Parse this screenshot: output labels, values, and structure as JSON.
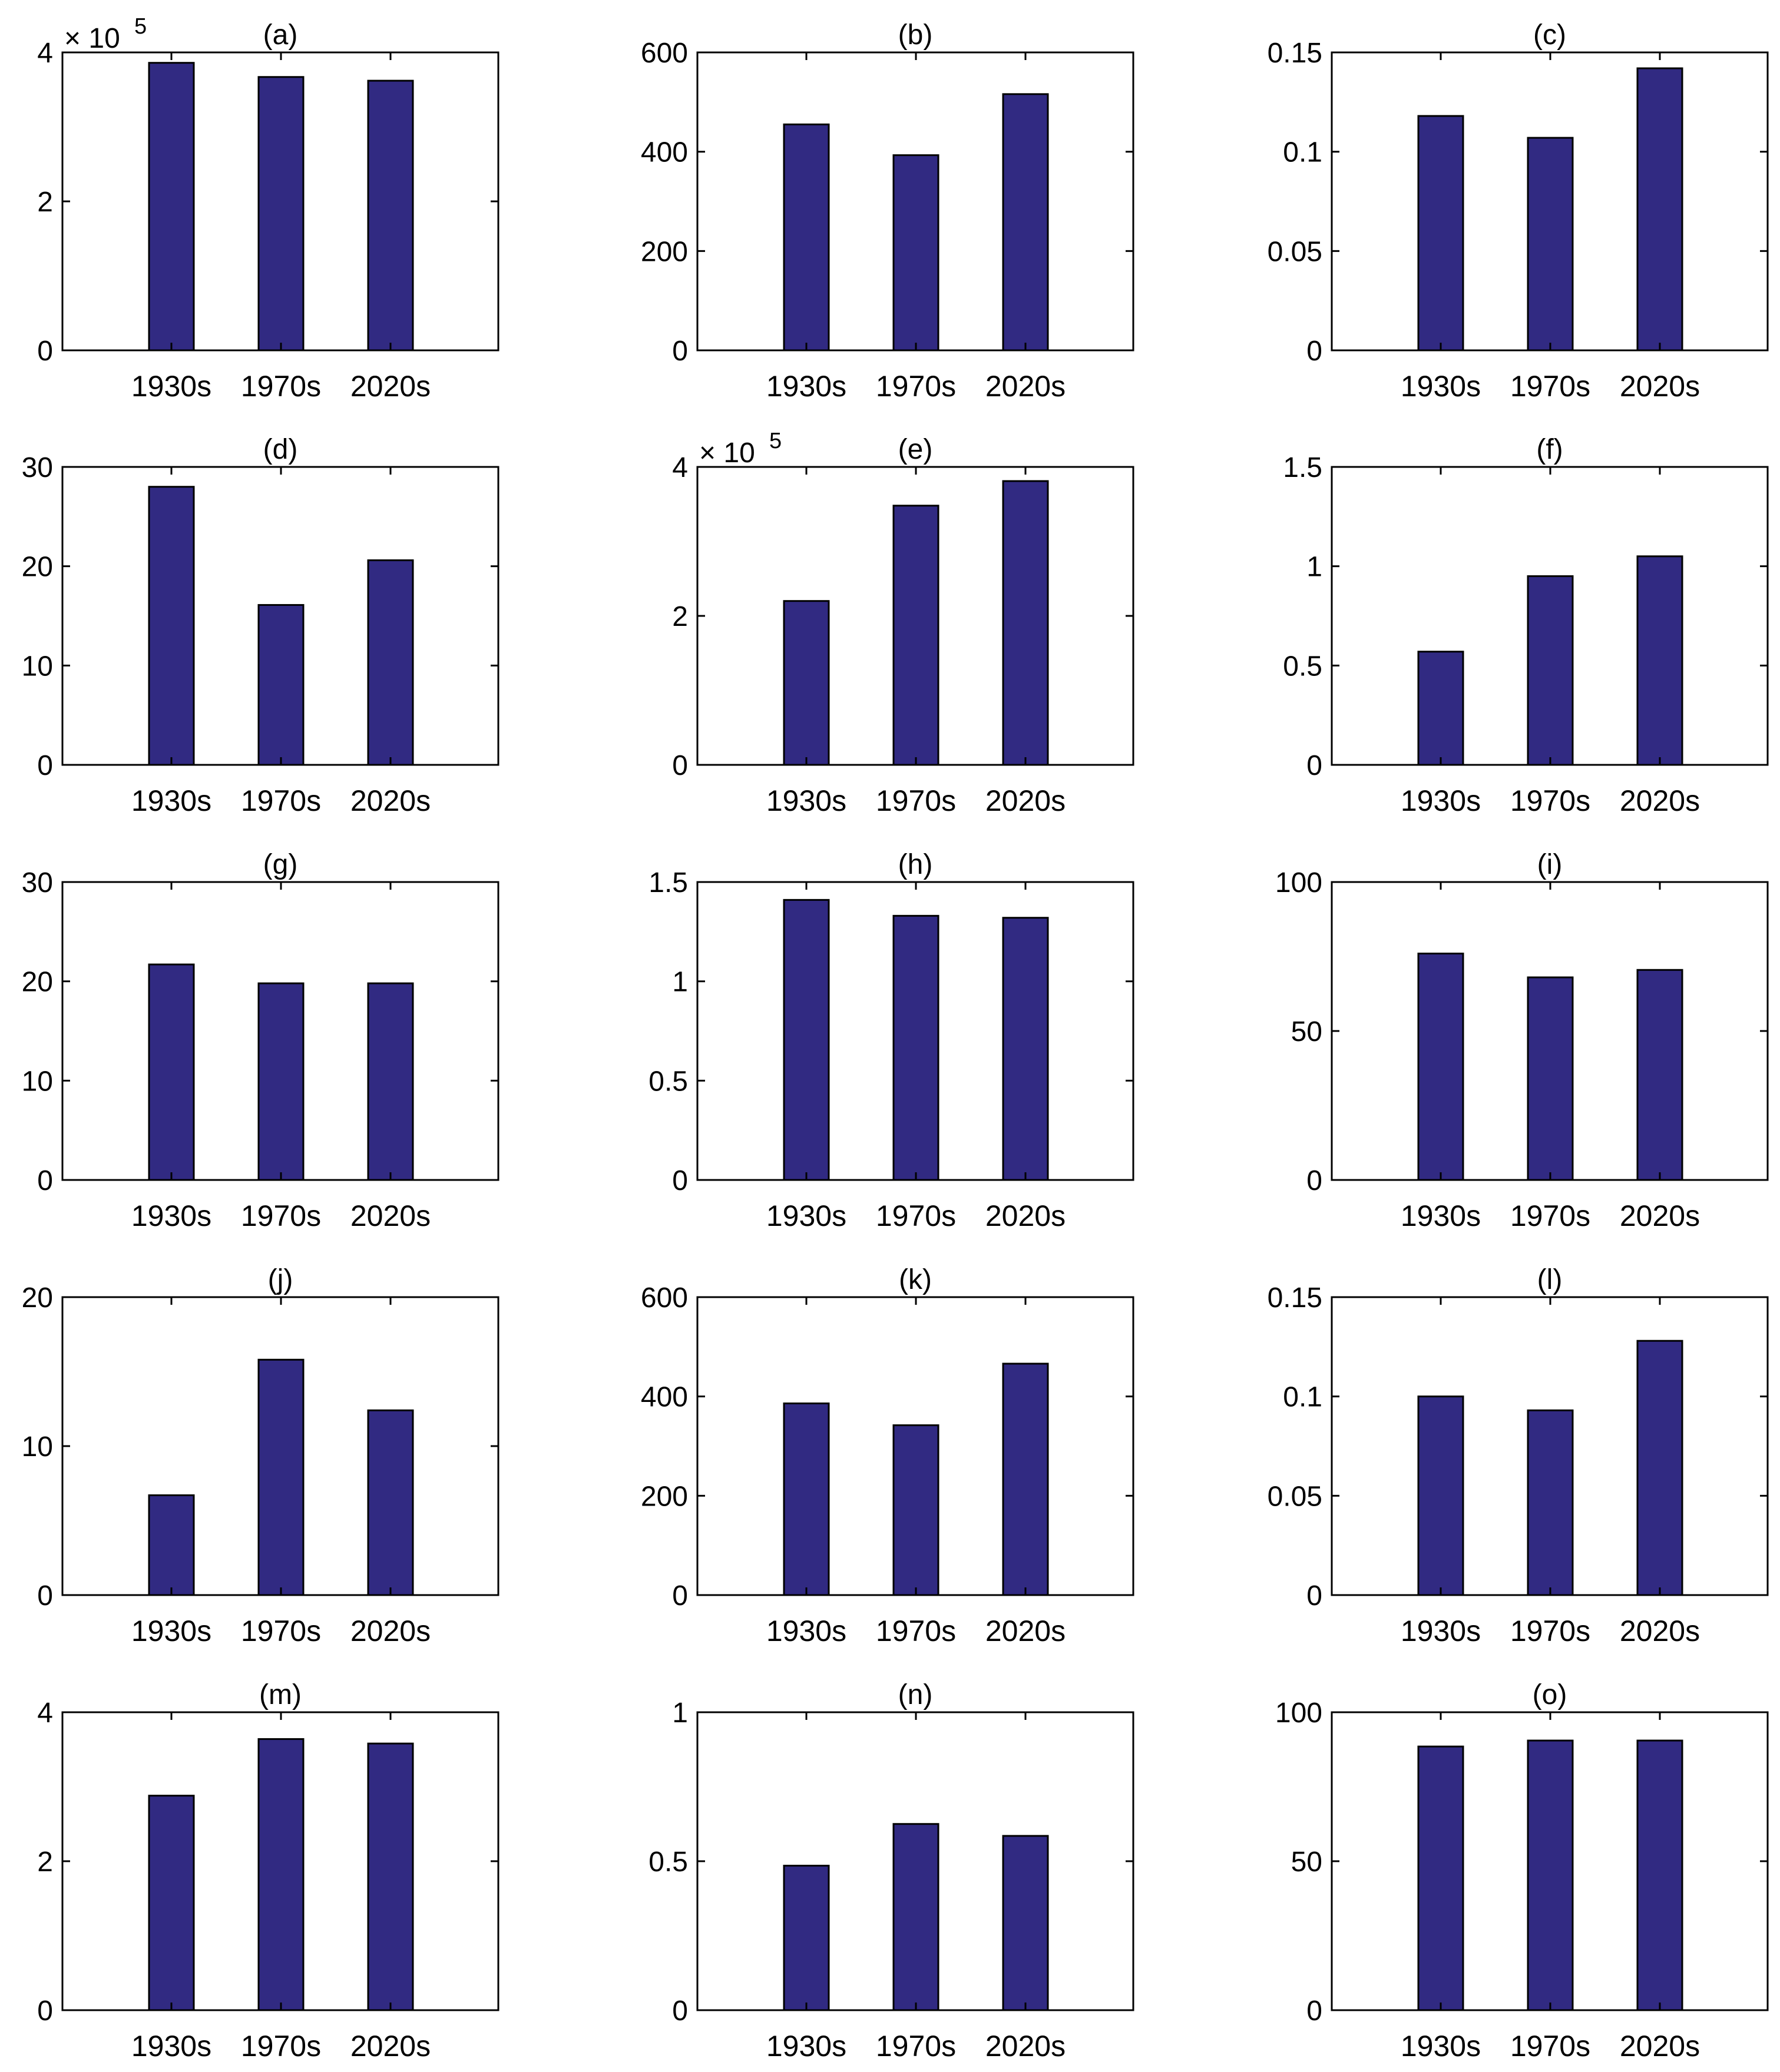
{
  "colors": {
    "bar": "#312a82",
    "axis": "#000000",
    "background": "#ffffff"
  },
  "chart_data": [
    {
      "type": "bar",
      "title": "(a)",
      "categories": [
        "1930s",
        "1970s",
        "2020s"
      ],
      "values": [
        3.86,
        3.67,
        3.62
      ],
      "ylim": [
        0,
        4
      ],
      "yticks": [
        0,
        2,
        4
      ],
      "tick_labels": [
        "0",
        "2",
        "4"
      ],
      "exponent_label": "× 10",
      "exponent": "5",
      "grid": false
    },
    {
      "type": "bar",
      "title": "(b)",
      "categories": [
        "1930s",
        "1970s",
        "2020s"
      ],
      "values": [
        455,
        393,
        516
      ],
      "ylim": [
        0,
        600
      ],
      "yticks": [
        0,
        200,
        400,
        600
      ],
      "tick_labels": [
        "0",
        "200",
        "400",
        "600"
      ],
      "grid": false
    },
    {
      "type": "bar",
      "title": "(c)",
      "categories": [
        "1930s",
        "1970s",
        "2020s"
      ],
      "values": [
        0.118,
        0.107,
        0.142
      ],
      "ylim": [
        0,
        0.15
      ],
      "yticks": [
        0,
        0.05,
        0.1,
        0.15
      ],
      "tick_labels": [
        "0",
        "0.05",
        "0.1",
        "0.15"
      ],
      "grid": false
    },
    {
      "type": "bar",
      "title": "(d)",
      "categories": [
        "1930s",
        "1970s",
        "2020s"
      ],
      "values": [
        28.0,
        16.1,
        20.6
      ],
      "ylim": [
        0,
        30
      ],
      "yticks": [
        0,
        10,
        20,
        30
      ],
      "tick_labels": [
        "0",
        "10",
        "20",
        "30"
      ],
      "grid": false
    },
    {
      "type": "bar",
      "title": "(e)",
      "categories": [
        "1930s",
        "1970s",
        "2020s"
      ],
      "values": [
        2.2,
        3.48,
        3.81
      ],
      "ylim": [
        0,
        4
      ],
      "yticks": [
        0,
        2,
        4
      ],
      "tick_labels": [
        "0",
        "2",
        "4"
      ],
      "exponent_label": "× 10",
      "exponent": "5",
      "grid": false
    },
    {
      "type": "bar",
      "title": "(f)",
      "categories": [
        "1930s",
        "1970s",
        "2020s"
      ],
      "values": [
        0.57,
        0.95,
        1.05
      ],
      "ylim": [
        0,
        1.5
      ],
      "yticks": [
        0,
        0.5,
        1,
        1.5
      ],
      "tick_labels": [
        "0",
        "0.5",
        "1",
        "1.5"
      ],
      "grid": false
    },
    {
      "type": "bar",
      "title": "(g)",
      "categories": [
        "1930s",
        "1970s",
        "2020s"
      ],
      "values": [
        21.7,
        19.8,
        19.8
      ],
      "ylim": [
        0,
        30
      ],
      "yticks": [
        0,
        10,
        20,
        30
      ],
      "tick_labels": [
        "0",
        "10",
        "20",
        "30"
      ],
      "grid": false
    },
    {
      "type": "bar",
      "title": "(h)",
      "categories": [
        "1930s",
        "1970s",
        "2020s"
      ],
      "values": [
        1.41,
        1.33,
        1.32
      ],
      "ylim": [
        0,
        1.5
      ],
      "yticks": [
        0,
        0.5,
        1,
        1.5
      ],
      "tick_labels": [
        "0",
        "0.5",
        "1",
        "1.5"
      ],
      "grid": false
    },
    {
      "type": "bar",
      "title": "(i)",
      "categories": [
        "1930s",
        "1970s",
        "2020s"
      ],
      "values": [
        76,
        68,
        70.5
      ],
      "ylim": [
        0,
        100
      ],
      "yticks": [
        0,
        50,
        100
      ],
      "tick_labels": [
        "0",
        "50",
        "100"
      ],
      "grid": false
    },
    {
      "type": "bar",
      "title": "(j)",
      "categories": [
        "1930s",
        "1970s",
        "2020s"
      ],
      "values": [
        6.7,
        15.8,
        12.4
      ],
      "ylim": [
        0,
        20
      ],
      "yticks": [
        0,
        10,
        20
      ],
      "tick_labels": [
        "0",
        "10",
        "20"
      ],
      "grid": false
    },
    {
      "type": "bar",
      "title": "(k)",
      "categories": [
        "1930s",
        "1970s",
        "2020s"
      ],
      "values": [
        386,
        342,
        466
      ],
      "ylim": [
        0,
        600
      ],
      "yticks": [
        0,
        200,
        400,
        600
      ],
      "tick_labels": [
        "0",
        "200",
        "400",
        "600"
      ],
      "grid": false
    },
    {
      "type": "bar",
      "title": "(l)",
      "categories": [
        "1930s",
        "1970s",
        "2020s"
      ],
      "values": [
        0.1,
        0.093,
        0.128
      ],
      "ylim": [
        0,
        0.15
      ],
      "yticks": [
        0,
        0.05,
        0.1,
        0.15
      ],
      "tick_labels": [
        "0",
        "0.05",
        "0.1",
        "0.15"
      ],
      "grid": false
    },
    {
      "type": "bar",
      "title": "(m)",
      "categories": [
        "1930s",
        "1970s",
        "2020s"
      ],
      "values": [
        2.88,
        3.64,
        3.58
      ],
      "ylim": [
        0,
        4
      ],
      "yticks": [
        0,
        2,
        4
      ],
      "tick_labels": [
        "0",
        "2",
        "4"
      ],
      "grid": false
    },
    {
      "type": "bar",
      "title": "(n)",
      "categories": [
        "1930s",
        "1970s",
        "2020s"
      ],
      "values": [
        0.485,
        0.625,
        0.585
      ],
      "ylim": [
        0,
        1
      ],
      "yticks": [
        0,
        0.5,
        1
      ],
      "tick_labels": [
        "0",
        "0.5",
        "1"
      ],
      "grid": false
    },
    {
      "type": "bar",
      "title": "(o)",
      "categories": [
        "1930s",
        "1970s",
        "2020s"
      ],
      "values": [
        88.5,
        90.5,
        90.5
      ],
      "ylim": [
        0,
        100
      ],
      "yticks": [
        0,
        50,
        100
      ],
      "tick_labels": [
        "0",
        "50",
        "100"
      ],
      "grid": false
    }
  ]
}
